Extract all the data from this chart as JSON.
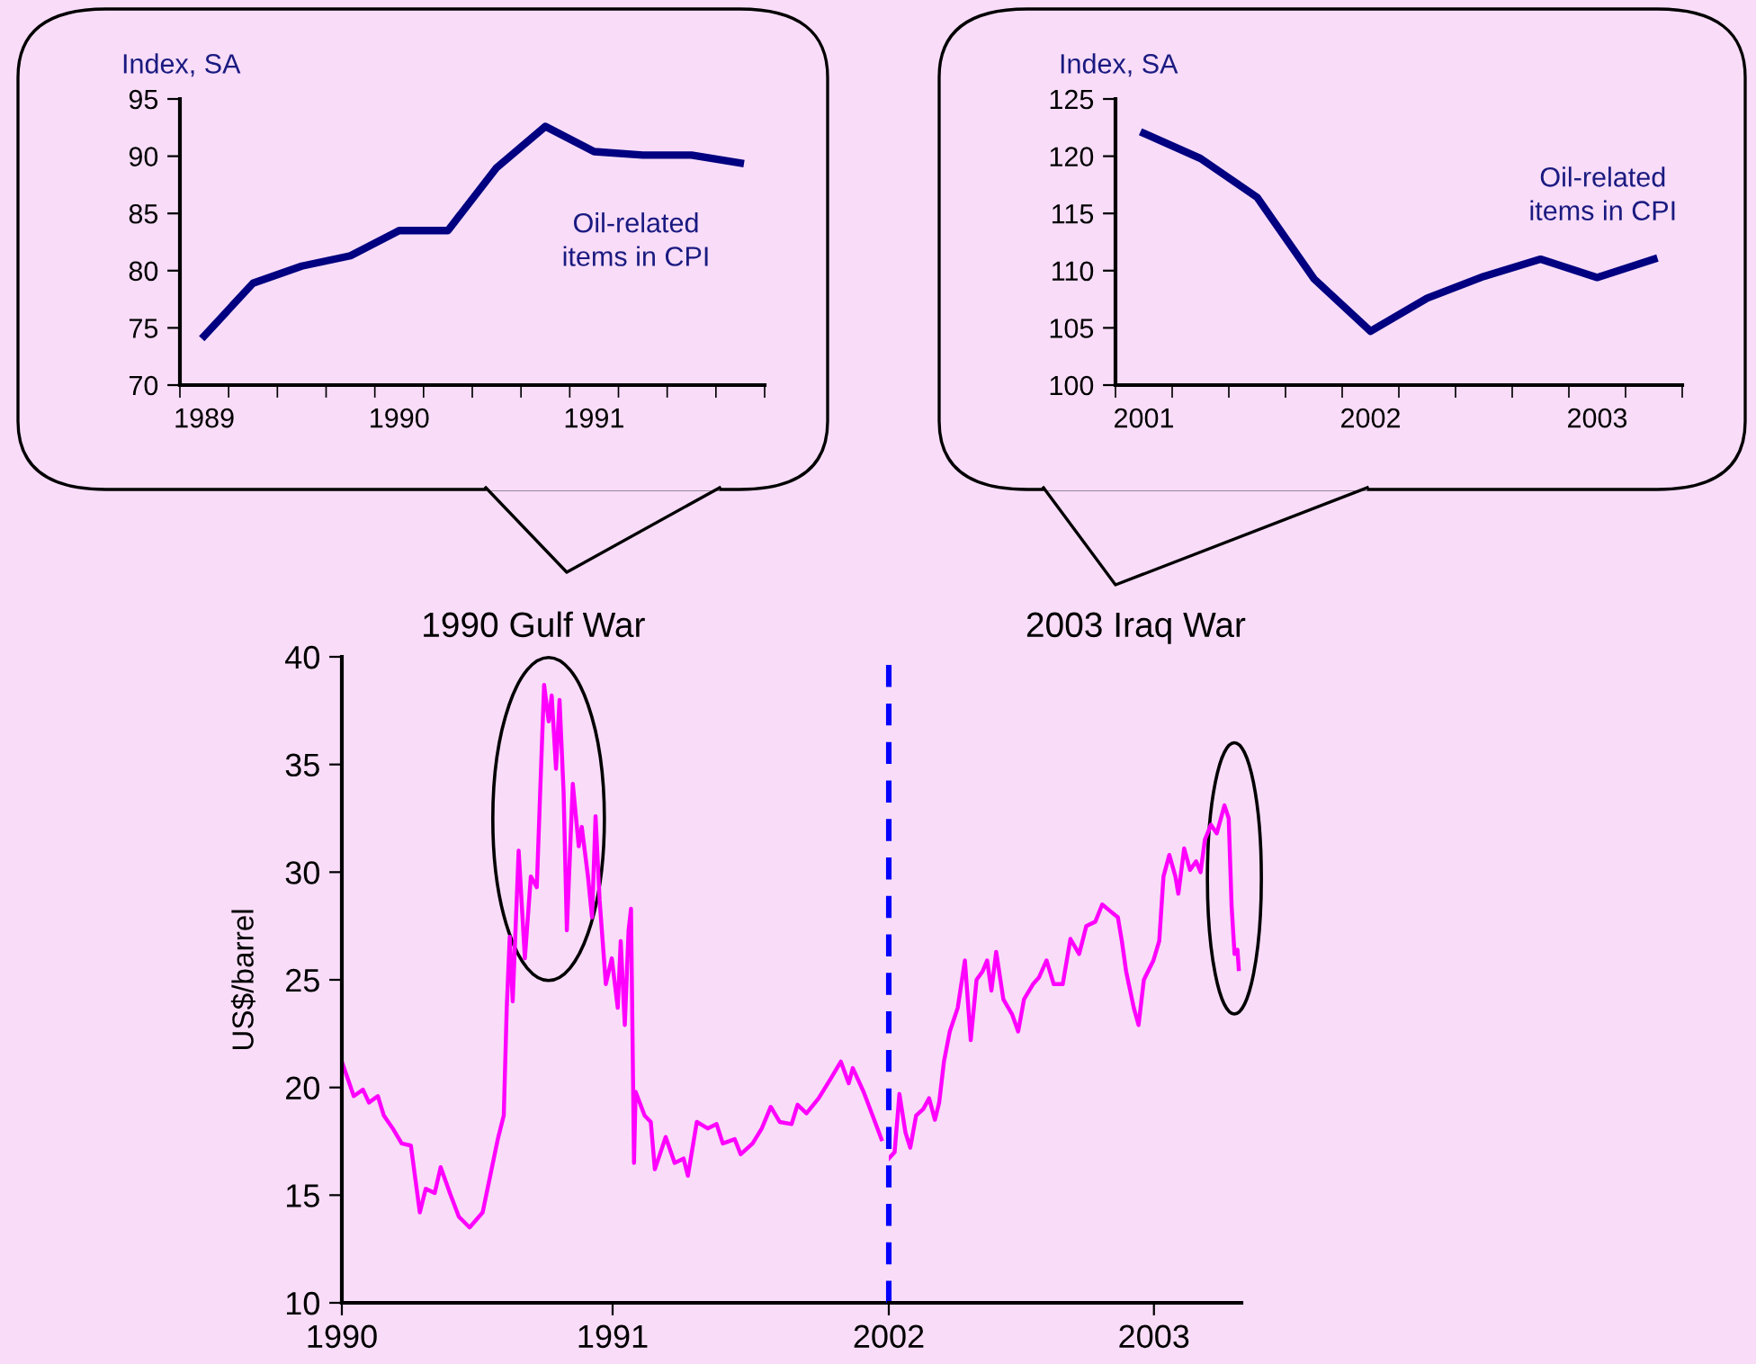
{
  "chart_data": [
    {
      "type": "line",
      "ylabel": "Index, SA",
      "categories": [
        "1989",
        null,
        null,
        null,
        "1990",
        null,
        null,
        null,
        "1991",
        null,
        null,
        null
      ],
      "ylim": [
        70,
        95
      ],
      "yticks": [
        70,
        75,
        80,
        85,
        90,
        95
      ],
      "annotations": [
        "Oil-related\nitems in CPI"
      ],
      "series": [
        {
          "color": "#000080",
          "values": [
            74.3,
            78.9,
            80.4,
            81.3,
            83.5,
            83.5,
            89.0,
            92.6,
            90.4,
            90.1,
            90.1,
            89.4
          ]
        }
      ]
    },
    {
      "type": "line",
      "ylabel": "Index, SA",
      "categories": [
        "2001",
        null,
        null,
        null,
        "2002",
        null,
        null,
        null,
        "2003",
        null
      ],
      "ylim": [
        100,
        125
      ],
      "yticks": [
        100,
        105,
        110,
        115,
        120,
        125
      ],
      "annotations": [
        "Oil-related\nitems in CPI"
      ],
      "series": [
        {
          "color": "#000080",
          "values": [
            122.0,
            119.8,
            116.4,
            109.3,
            104.7,
            107.6,
            109.5,
            111.0,
            109.4,
            111.0
          ]
        }
      ]
    },
    {
      "type": "line",
      "title": "1990 Gulf War",
      "ylabel": "US$/barrel",
      "xlim": [
        1990,
        1992.02
      ],
      "xticks": [
        1990,
        1991
      ],
      "ylim": [
        10,
        40
      ],
      "yticks": [
        10,
        15,
        20,
        25,
        30,
        35,
        40
      ],
      "series": [
        {
          "color": "#ff00ff",
          "x": [
            1990.0,
            1990.022,
            1990.044,
            1990.078,
            1990.1,
            1990.133,
            1990.155,
            1990.188,
            1990.221,
            1990.255,
            1990.288,
            1990.31,
            1990.343,
            1990.365,
            1990.399,
            1990.432,
            1990.472,
            1990.52,
            1990.543,
            1990.576,
            1990.598,
            1990.609,
            1990.62,
            1990.631,
            1990.653,
            1990.676,
            1990.698,
            1990.72,
            1990.731,
            1990.747,
            1990.764,
            1990.775,
            1990.791,
            1990.804,
            1990.819,
            1990.831,
            1990.853,
            1990.875,
            1990.886,
            1990.909,
            1990.924,
            1990.937,
            1990.952,
            1990.975,
            1990.997,
            1991.019,
            1991.03,
            1991.045,
            1991.059,
            1991.068,
            1991.079,
            1991.085,
            1991.118,
            1991.141,
            1991.156,
            1991.196,
            1991.229,
            1991.262,
            1991.278,
            1991.311,
            1991.351,
            1991.384,
            1991.407,
            1991.451,
            1991.473,
            1991.517,
            1991.551,
            1991.584,
            1991.617,
            1991.661,
            1991.683,
            1991.716,
            1991.761,
            1991.805,
            1991.843,
            1991.872,
            1991.887,
            1991.927,
            1991.96,
            1991.993
          ],
          "values": [
            21.2,
            20.4,
            19.6,
            19.9,
            19.3,
            19.6,
            18.7,
            18.1,
            17.4,
            17.3,
            14.2,
            15.3,
            15.1,
            16.3,
            15.1,
            14.0,
            13.5,
            14.2,
            15.6,
            17.6,
            18.7,
            23.7,
            27.0,
            24.0,
            31.0,
            26.0,
            29.8,
            29.3,
            33.2,
            38.7,
            37.0,
            38.2,
            34.8,
            38.0,
            33.7,
            27.3,
            34.1,
            31.2,
            32.1,
            29.8,
            27.9,
            32.6,
            28.7,
            24.8,
            26.0,
            23.7,
            26.8,
            22.9,
            27.3,
            28.3,
            16.5,
            19.8,
            18.7,
            18.4,
            16.2,
            17.7,
            16.5,
            16.7,
            15.9,
            18.4,
            18.1,
            18.3,
            17.4,
            17.6,
            16.9,
            17.4,
            18.1,
            19.1,
            18.4,
            18.3,
            19.2,
            18.8,
            19.5,
            20.4,
            21.2,
            20.2,
            20.9,
            19.8,
            18.7,
            17.6
          ]
        }
      ]
    },
    {
      "type": "line",
      "title": "2003 Iraq War",
      "xlim": [
        2002,
        2003.33
      ],
      "xticks": [
        2002,
        2003
      ],
      "ylim": [
        10,
        40
      ],
      "tick_labels": "x",
      "ref_lines": [
        {
          "axis": "x",
          "value": 2002,
          "color": "#0000ff",
          "line_style": "dashed"
        }
      ],
      "series": [
        {
          "color": "#ff00ff",
          "x": [
            2002.0,
            2002.022,
            2002.04,
            2002.063,
            2002.081,
            2002.103,
            2002.13,
            2002.152,
            2002.174,
            2002.19,
            2002.208,
            2002.23,
            2002.26,
            2002.287,
            2002.309,
            2002.331,
            2002.354,
            2002.371,
            2002.387,
            2002.405,
            2002.432,
            2002.465,
            2002.488,
            2002.51,
            2002.544,
            2002.566,
            2002.595,
            2002.622,
            2002.656,
            2002.685,
            2002.718,
            2002.745,
            2002.779,
            2002.805,
            2002.834,
            2002.864,
            2002.879,
            2002.895,
            2002.924,
            2002.942,
            2002.962,
            2002.998,
            2003.02,
            2003.036,
            2003.058,
            2003.081,
            2003.092,
            2003.114,
            2003.136,
            2003.159,
            2003.176,
            2003.192,
            2003.215,
            2003.237,
            2003.266,
            2003.282,
            2003.293,
            2003.304,
            2003.315,
            2003.32
          ],
          "values": [
            16.7,
            17.0,
            19.7,
            17.9,
            17.2,
            18.7,
            19.0,
            19.5,
            18.5,
            19.3,
            21.2,
            22.6,
            23.7,
            25.9,
            22.2,
            25.0,
            25.4,
            25.9,
            24.5,
            26.3,
            24.1,
            23.4,
            22.6,
            24.1,
            24.8,
            25.1,
            25.9,
            24.8,
            24.8,
            26.9,
            26.2,
            27.5,
            27.7,
            28.5,
            28.2,
            27.9,
            26.8,
            25.4,
            23.7,
            22.9,
            25.0,
            25.9,
            26.8,
            29.8,
            30.8,
            29.8,
            29.0,
            31.1,
            30.1,
            30.5,
            30.0,
            31.5,
            32.2,
            31.8,
            33.1,
            32.5,
            28.4,
            26.2,
            26.4,
            25.5
          ]
        }
      ]
    }
  ]
}
